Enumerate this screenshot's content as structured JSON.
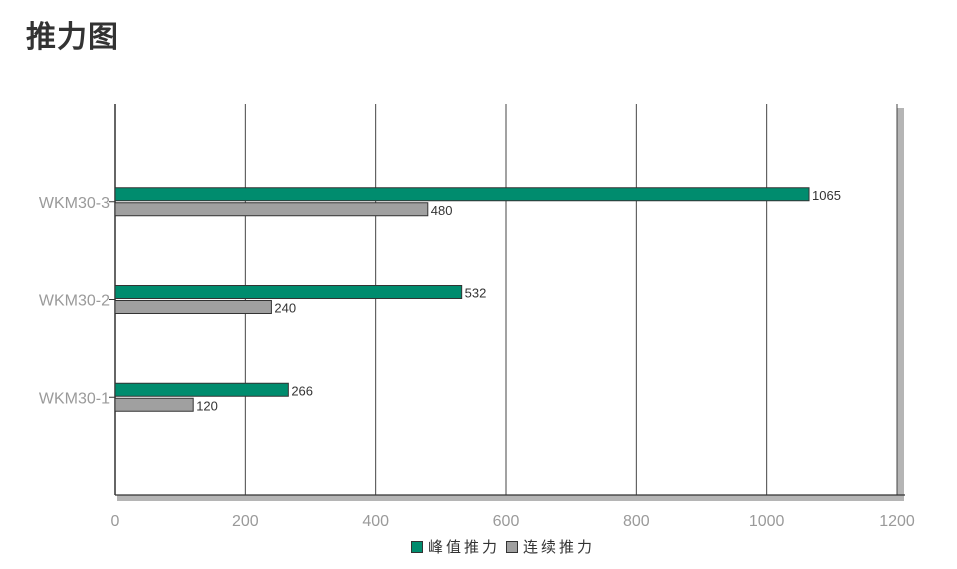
{
  "page": {
    "title": "推力图"
  },
  "chart_data": {
    "type": "bar",
    "orientation": "horizontal",
    "title": "",
    "xlabel": "",
    "ylabel": "",
    "categories": [
      "WKM30-3",
      "WKM30-2",
      "WKM30-1"
    ],
    "series": [
      {
        "name": "峰值推力",
        "color": "#008c6e",
        "values": [
          1065,
          532,
          266
        ]
      },
      {
        "name": "连续推力",
        "color": "#a0a0a0",
        "values": [
          480,
          240,
          120
        ]
      }
    ],
    "xlim": [
      0,
      1200
    ],
    "xticks": [
      0,
      200,
      400,
      600,
      800,
      1000,
      1200
    ],
    "grid": true,
    "legend": "bottom-center",
    "data_labels": true
  }
}
